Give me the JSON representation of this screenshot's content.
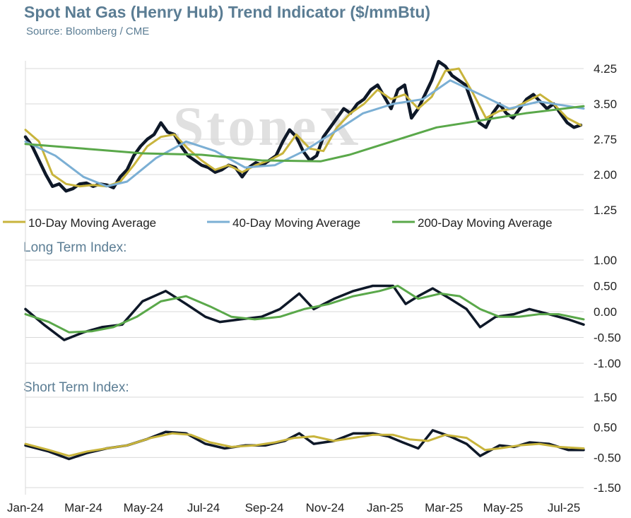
{
  "title": "Spot Nat Gas (Henry Hub) Trend Indicator ($/mmBtu)",
  "source": "Source: Bloomberg / CME",
  "watermark": "StoneX",
  "colors": {
    "title": "#5b7d94",
    "spot": "#0e1828",
    "ma10": "#c8b43c",
    "ma40": "#7bafd4",
    "ma200": "#5aa84a",
    "grid": "#d9d9d9"
  },
  "x_axis": {
    "tick_labels": [
      "Jan-24",
      "Mar-24",
      "May-24",
      "Jul-24",
      "Sep-24",
      "Nov-24",
      "Jan-25",
      "Mar-25",
      "May-25",
      "Jul-25"
    ]
  },
  "chart_data": [
    {
      "type": "line",
      "title": "Spot Nat Gas (Henry Hub) Trend Indicator ($/mmBtu)",
      "x_range": [
        "2024-01-01",
        "2025-07-31"
      ],
      "ylim": [
        1.25,
        4.25
      ],
      "yticks": [
        "4.25",
        "3.50",
        "2.75",
        "2.00",
        "1.25"
      ],
      "grid": true,
      "legend": "bottom",
      "legend_labels": [
        "10-Day Moving Average",
        "40-Day Moving Average",
        "200-Day Moving Average"
      ],
      "series": [
        {
          "key": "spot",
          "dates": [
            "2024-01-01",
            "2024-01-08",
            "2024-01-15",
            "2024-01-22",
            "2024-01-29",
            "2024-02-05",
            "2024-02-12",
            "2024-02-19",
            "2024-02-26",
            "2024-03-04",
            "2024-03-11",
            "2024-03-18",
            "2024-03-25",
            "2024-04-01",
            "2024-04-08",
            "2024-04-15",
            "2024-04-22",
            "2024-04-29",
            "2024-05-06",
            "2024-05-13",
            "2024-05-20",
            "2024-05-27",
            "2024-06-03",
            "2024-06-10",
            "2024-06-17",
            "2024-06-24",
            "2024-07-01",
            "2024-07-08",
            "2024-07-15",
            "2024-07-22",
            "2024-07-29",
            "2024-08-05",
            "2024-08-12",
            "2024-08-19",
            "2024-08-26",
            "2024-09-02",
            "2024-09-09",
            "2024-09-16",
            "2024-09-23",
            "2024-09-30",
            "2024-10-07",
            "2024-10-14",
            "2024-10-21",
            "2024-10-28",
            "2024-11-04",
            "2024-11-11",
            "2024-11-18",
            "2024-11-25",
            "2024-12-02",
            "2024-12-09",
            "2024-12-16",
            "2024-12-23",
            "2024-12-30",
            "2025-01-06",
            "2025-01-13",
            "2025-01-20",
            "2025-01-27",
            "2025-02-03",
            "2025-02-10",
            "2025-02-17",
            "2025-02-24",
            "2025-03-03",
            "2025-03-10",
            "2025-03-17",
            "2025-03-24",
            "2025-03-31",
            "2025-04-07",
            "2025-04-14",
            "2025-04-21",
            "2025-04-28",
            "2025-05-05",
            "2025-05-12",
            "2025-05-19",
            "2025-05-26",
            "2025-06-02",
            "2025-06-09",
            "2025-06-16",
            "2025-06-23",
            "2025-06-30",
            "2025-07-07",
            "2025-07-14",
            "2025-07-21",
            "2025-07-28"
          ],
          "values": [
            2.8,
            2.6,
            2.3,
            2.0,
            1.75,
            1.8,
            1.65,
            1.7,
            1.8,
            1.82,
            1.75,
            1.8,
            1.78,
            1.72,
            1.95,
            2.1,
            2.4,
            2.6,
            2.75,
            2.85,
            3.1,
            2.9,
            2.85,
            2.6,
            2.4,
            2.3,
            2.2,
            2.15,
            2.05,
            2.1,
            2.2,
            2.15,
            1.95,
            2.15,
            2.25,
            2.2,
            2.3,
            2.4,
            2.7,
            2.95,
            2.8,
            2.5,
            2.3,
            2.4,
            2.8,
            3.0,
            3.2,
            3.4,
            3.3,
            3.5,
            3.6,
            3.8,
            3.9,
            3.65,
            3.4,
            3.8,
            3.9,
            3.2,
            3.4,
            3.7,
            4.0,
            4.4,
            4.3,
            4.1,
            4.0,
            3.9,
            3.5,
            3.1,
            3.0,
            3.3,
            3.5,
            3.3,
            3.2,
            3.4,
            3.6,
            3.7,
            3.55,
            3.4,
            3.5,
            3.3,
            3.1,
            3.0,
            3.05
          ]
        },
        {
          "key": "ma10",
          "name": "10-Day Moving Average",
          "dates": [
            "2024-01-01",
            "2024-01-15",
            "2024-01-29",
            "2024-02-12",
            "2024-02-26",
            "2024-03-11",
            "2024-03-25",
            "2024-04-08",
            "2024-04-22",
            "2024-05-06",
            "2024-05-20",
            "2024-06-03",
            "2024-06-17",
            "2024-07-01",
            "2024-07-15",
            "2024-07-29",
            "2024-08-12",
            "2024-08-26",
            "2024-09-09",
            "2024-09-23",
            "2024-10-07",
            "2024-10-21",
            "2024-11-04",
            "2024-11-18",
            "2024-12-02",
            "2024-12-16",
            "2024-12-30",
            "2025-01-13",
            "2025-01-27",
            "2025-02-10",
            "2025-02-24",
            "2025-03-10",
            "2025-03-24",
            "2025-04-07",
            "2025-04-21",
            "2025-05-05",
            "2025-05-19",
            "2025-06-02",
            "2025-06-16",
            "2025-06-30",
            "2025-07-14",
            "2025-07-28"
          ],
          "values": [
            2.95,
            2.7,
            2.0,
            1.8,
            1.75,
            1.78,
            1.75,
            1.85,
            2.2,
            2.6,
            2.8,
            2.85,
            2.55,
            2.3,
            2.1,
            2.2,
            2.05,
            2.2,
            2.3,
            2.45,
            2.85,
            2.55,
            2.5,
            3.0,
            3.3,
            3.5,
            3.8,
            3.6,
            3.7,
            3.4,
            3.65,
            4.2,
            4.25,
            3.75,
            3.2,
            3.35,
            3.4,
            3.55,
            3.7,
            3.5,
            3.2,
            3.05
          ]
        },
        {
          "key": "ma40",
          "name": "40-Day Moving Average",
          "dates": [
            "2024-01-01",
            "2024-02-01",
            "2024-03-01",
            "2024-03-25",
            "2024-04-15",
            "2024-05-15",
            "2024-06-15",
            "2024-07-15",
            "2024-08-15",
            "2024-09-15",
            "2024-10-15",
            "2024-11-15",
            "2024-12-15",
            "2025-01-15",
            "2025-02-15",
            "2025-03-15",
            "2025-04-15",
            "2025-05-15",
            "2025-06-15",
            "2025-07-31"
          ],
          "values": [
            2.7,
            2.4,
            1.95,
            1.75,
            1.85,
            2.35,
            2.7,
            2.5,
            2.15,
            2.2,
            2.5,
            2.9,
            3.3,
            3.5,
            3.6,
            4.0,
            3.7,
            3.4,
            3.55,
            3.4
          ]
        },
        {
          "key": "ma200",
          "name": "200-Day Moving Average",
          "dates": [
            "2024-01-01",
            "2024-03-01",
            "2024-05-01",
            "2024-07-01",
            "2024-09-01",
            "2024-11-01",
            "2024-12-01",
            "2025-01-01",
            "2025-02-01",
            "2025-03-01",
            "2025-04-01",
            "2025-05-01",
            "2025-06-01",
            "2025-07-31"
          ],
          "values": [
            2.65,
            2.55,
            2.45,
            2.42,
            2.3,
            2.28,
            2.42,
            2.62,
            2.82,
            3.0,
            3.1,
            3.2,
            3.3,
            3.45
          ]
        }
      ]
    },
    {
      "type": "line",
      "title": "Long Term Index:",
      "x_range": [
        "2024-01-01",
        "2025-07-31"
      ],
      "ylim": [
        -1.0,
        1.0
      ],
      "yticks": [
        "1.00",
        "0.50",
        "0.00",
        "-0.50",
        "-1.00"
      ],
      "grid": true,
      "series": [
        {
          "key": "index",
          "dates": [
            "2024-01-01",
            "2024-01-20",
            "2024-02-10",
            "2024-03-01",
            "2024-03-20",
            "2024-04-10",
            "2024-05-01",
            "2024-05-25",
            "2024-06-15",
            "2024-07-05",
            "2024-07-20",
            "2024-08-10",
            "2024-09-01",
            "2024-09-20",
            "2024-10-10",
            "2024-10-25",
            "2024-11-15",
            "2024-12-05",
            "2024-12-25",
            "2025-01-15",
            "2025-01-28",
            "2025-02-10",
            "2025-02-25",
            "2025-03-15",
            "2025-04-01",
            "2025-04-15",
            "2025-05-01",
            "2025-05-20",
            "2025-06-05",
            "2025-06-25",
            "2025-07-15",
            "2025-07-31"
          ],
          "values": [
            0.05,
            -0.25,
            -0.55,
            -0.4,
            -0.3,
            -0.25,
            0.2,
            0.4,
            0.15,
            -0.1,
            -0.2,
            -0.15,
            -0.1,
            0.05,
            0.35,
            0.05,
            0.25,
            0.4,
            0.5,
            0.5,
            0.15,
            0.3,
            0.45,
            0.25,
            0.05,
            -0.3,
            -0.1,
            -0.05,
            0.05,
            -0.05,
            -0.15,
            -0.25
          ]
        },
        {
          "key": "signal",
          "dates": [
            "2024-01-01",
            "2024-01-25",
            "2024-02-15",
            "2024-03-10",
            "2024-04-01",
            "2024-04-25",
            "2024-05-20",
            "2024-06-15",
            "2024-07-10",
            "2024-08-01",
            "2024-08-25",
            "2024-09-20",
            "2024-10-15",
            "2024-11-10",
            "2024-12-05",
            "2025-01-01",
            "2025-01-20",
            "2025-02-10",
            "2025-03-05",
            "2025-03-25",
            "2025-04-15",
            "2025-05-05",
            "2025-05-25",
            "2025-06-15",
            "2025-07-05",
            "2025-07-31"
          ],
          "values": [
            -0.05,
            -0.2,
            -0.4,
            -0.38,
            -0.3,
            -0.1,
            0.2,
            0.3,
            0.1,
            -0.1,
            -0.15,
            -0.1,
            0.05,
            0.15,
            0.3,
            0.4,
            0.5,
            0.25,
            0.35,
            0.3,
            0.05,
            -0.1,
            -0.1,
            -0.05,
            -0.05,
            -0.15
          ]
        }
      ]
    },
    {
      "type": "line",
      "title": "Short Term Index:",
      "x_range": [
        "2024-01-01",
        "2025-07-31"
      ],
      "ylim": [
        -1.5,
        1.5
      ],
      "yticks": [
        "1.50",
        "0.50",
        "-0.50",
        "-1.50"
      ],
      "grid": true,
      "series": [
        {
          "key": "index",
          "dates": [
            "2024-01-01",
            "2024-01-25",
            "2024-02-15",
            "2024-03-05",
            "2024-03-25",
            "2024-04-15",
            "2024-05-05",
            "2024-05-25",
            "2024-06-15",
            "2024-07-05",
            "2024-07-25",
            "2024-08-15",
            "2024-09-05",
            "2024-09-25",
            "2024-10-10",
            "2024-10-25",
            "2024-11-15",
            "2024-12-05",
            "2024-12-25",
            "2025-01-10",
            "2025-01-25",
            "2025-02-10",
            "2025-02-25",
            "2025-03-15",
            "2025-04-01",
            "2025-04-15",
            "2025-05-05",
            "2025-05-20",
            "2025-06-05",
            "2025-06-25",
            "2025-07-15",
            "2025-07-31"
          ],
          "values": [
            -0.1,
            -0.3,
            -0.55,
            -0.35,
            -0.2,
            -0.1,
            0.1,
            0.35,
            0.3,
            -0.05,
            -0.2,
            -0.1,
            -0.1,
            0.05,
            0.3,
            -0.05,
            0.05,
            0.3,
            0.3,
            0.2,
            0.0,
            -0.2,
            0.4,
            0.2,
            -0.05,
            -0.45,
            -0.1,
            -0.15,
            0.0,
            -0.05,
            -0.25,
            -0.25
          ]
        },
        {
          "key": "signal",
          "dates": [
            "2024-01-01",
            "2024-01-25",
            "2024-02-15",
            "2024-03-05",
            "2024-03-25",
            "2024-04-15",
            "2024-05-10",
            "2024-06-01",
            "2024-06-20",
            "2024-07-10",
            "2024-08-01",
            "2024-08-25",
            "2024-09-15",
            "2024-10-05",
            "2024-10-25",
            "2024-11-15",
            "2024-12-05",
            "2024-12-25",
            "2025-01-15",
            "2025-02-01",
            "2025-02-20",
            "2025-03-10",
            "2025-04-01",
            "2025-04-20",
            "2025-05-05",
            "2025-05-25",
            "2025-06-15",
            "2025-07-05",
            "2025-07-31"
          ],
          "values": [
            -0.05,
            -0.25,
            -0.45,
            -0.3,
            -0.2,
            -0.1,
            0.15,
            0.3,
            0.25,
            0.0,
            -0.15,
            -0.1,
            0.0,
            0.15,
            0.2,
            0.05,
            0.15,
            0.25,
            0.25,
            0.1,
            0.05,
            0.25,
            0.15,
            -0.25,
            -0.2,
            -0.1,
            -0.05,
            -0.15,
            -0.2
          ]
        }
      ]
    }
  ]
}
